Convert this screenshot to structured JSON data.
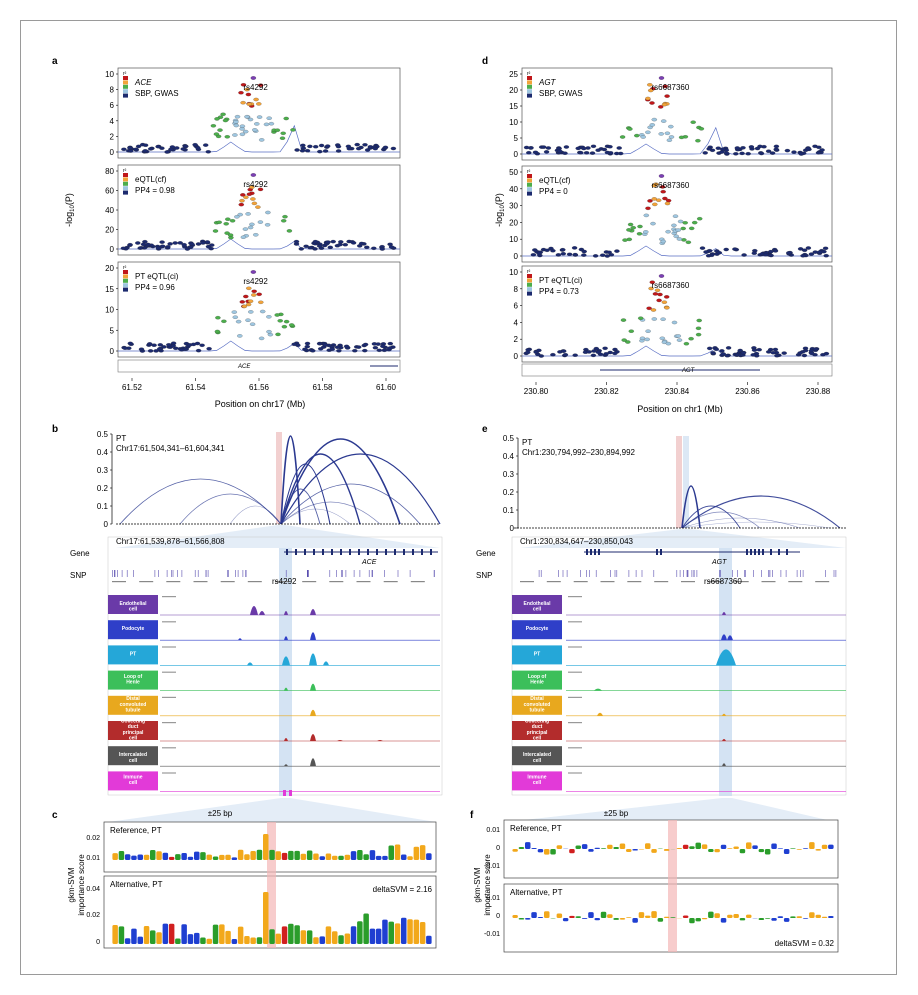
{
  "panels": {
    "a": {
      "letter": "a",
      "ylabel": "-log10(P)",
      "ylabel_main": "-log",
      "ylabel_sub": "10",
      "ylabel_tail": "(P)",
      "xlabel": "Position on chr17 (Mb)",
      "x_ticks": [
        "61.52",
        "61.54",
        "61.56",
        "61.58",
        "61.60"
      ],
      "gene_label": "ACE",
      "r2_label": "r²",
      "subplots": [
        {
          "title": "ACE",
          "subtitle": "SBP, GWAS",
          "snp": "rs4292",
          "yticks": [
            "0",
            "2",
            "4",
            "6",
            "8",
            "10"
          ]
        },
        {
          "title": "eQTL(cf)",
          "subtitle": "PP4 = 0.98",
          "snp": "rs4292",
          "yticks": [
            "0",
            "20",
            "40",
            "60",
            "80"
          ]
        },
        {
          "title": "PT eQTL(ci)",
          "subtitle": "PP4 = 0.96",
          "snp": "rs4292",
          "yticks": [
            "0",
            "5",
            "10",
            "15",
            "20"
          ]
        }
      ]
    },
    "d": {
      "letter": "d",
      "ylabel_main": "-log",
      "ylabel_sub": "10",
      "ylabel_tail": "(P)",
      "xlabel": "Position on chr1 (Mb)",
      "x_ticks": [
        "230.80",
        "230.82",
        "230.84",
        "230.86",
        "230.88"
      ],
      "gene_label": "AGT",
      "r2_label": "r²",
      "subplots": [
        {
          "title": "AGT",
          "subtitle": "SBP, GWAS",
          "snp": "rs6687360",
          "yticks": [
            "0",
            "5",
            "10",
            "15",
            "20",
            "25"
          ]
        },
        {
          "title": "eQTL(cf)",
          "subtitle": "PP4 = 0",
          "snp": "rs6687360",
          "yticks": [
            "0",
            "10",
            "20",
            "30",
            "40",
            "50"
          ]
        },
        {
          "title": "PT eQTL(ci)",
          "subtitle": "PP4 = 0.73",
          "snp": "rs6687360",
          "yticks": [
            "0",
            "2",
            "4",
            "6",
            "8",
            "10"
          ]
        }
      ]
    },
    "b": {
      "letter": "b",
      "arc_title": "PT",
      "arc_region": "Chr17:61,504,341–61,604,341",
      "arc_yticks": [
        "0",
        "0.1",
        "0.2",
        "0.3",
        "0.4",
        "0.5"
      ],
      "zoom_region": "Chr17:61,539,878–61,566,808",
      "gene_row": "Gene",
      "snp_row": "SNP",
      "gene_name": "ACE",
      "snp": "rs4292"
    },
    "e": {
      "letter": "e",
      "arc_title": "PT",
      "arc_region": "Chr1:230,794,992–230,894,992",
      "arc_yticks": [
        "0",
        "0.1",
        "0.2",
        "0.3",
        "0.4",
        "0.5"
      ],
      "zoom_region": "Chr1:230,834,647–230,850,043",
      "gene_row": "Gene",
      "snp_row": "SNP",
      "gene_name": "AGT",
      "snp": "rs6687360"
    },
    "c": {
      "letter": "c",
      "window": "±25 bp",
      "ylabel1": "gkm-SVM",
      "ylabel2": "importance score",
      "ref_label": "Reference, PT",
      "alt_label": "Alternative, PT",
      "delta": "deltaSVM = 2.16",
      "ref_yticks": [
        "0.01",
        "0.02"
      ],
      "alt_yticks": [
        "0",
        "0.02",
        "0.04"
      ]
    },
    "f": {
      "letter": "f",
      "window": "±25 bp",
      "ylabel1": "gkm-SVM",
      "ylabel2": "importance score",
      "ref_label": "Reference, PT",
      "alt_label": "Alternative, PT",
      "delta": "deltaSVM = 0.32",
      "ref_yticks": [
        "0.01",
        "0",
        "-0.01"
      ],
      "alt_yticks": [
        "0.01",
        "0",
        "-0.01"
      ]
    }
  },
  "cell_types": [
    {
      "label": "Endothelial cell",
      "color": "#6a3aa8"
    },
    {
      "label": "Podocyte",
      "color": "#2f3fc8"
    },
    {
      "label": "PT",
      "color": "#25a7d8"
    },
    {
      "label": "Loop of Henle",
      "color": "#3cbf5a"
    },
    {
      "label": "Distal convoluted tubule",
      "color": "#e8a81e"
    },
    {
      "label": "Collecting duct principal cell",
      "color": "#b32c2c"
    },
    {
      "label": "Intercalated cell",
      "color": "#555555"
    },
    {
      "label": "Immune cell",
      "color": "#e23ad8"
    }
  ],
  "colors": {
    "dark_navy": "#1c2a6e",
    "arc": "#2b3990",
    "highlight": "#c9dcf0",
    "snp_red": "#f4b6b6"
  }
}
